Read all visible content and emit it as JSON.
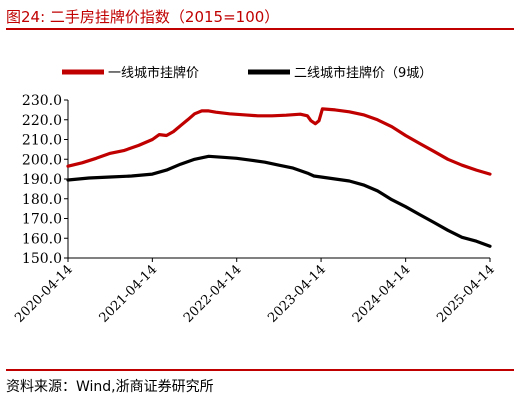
{
  "figure": {
    "title": "图24:  二手房挂牌价指数（2015=100）",
    "source": "资料来源：Wind,浙商证券研究所"
  },
  "colors": {
    "accent": "#c00000",
    "series1": "#c00000",
    "series2": "#000000"
  },
  "chart_data": {
    "type": "line",
    "x_ticks": [
      "2020-04-14",
      "2021-04-14",
      "2022-04-14",
      "2023-04-14",
      "2024-04-14",
      "2025-04-14"
    ],
    "y_ticks": [
      "150.0",
      "160.0",
      "170.0",
      "180.0",
      "190.0",
      "200.0",
      "210.0",
      "220.0",
      "230.0"
    ],
    "ylim": [
      150,
      230
    ],
    "xlim": [
      "2020-04-14",
      "2025-04-14"
    ],
    "legend_position": "top",
    "grid": false,
    "series": [
      {
        "name": "一线城市挂牌价",
        "color": "#c00000",
        "points": [
          [
            "2020-04-14",
            196.5
          ],
          [
            "2020-06-14",
            198.2
          ],
          [
            "2020-08-14",
            200.5
          ],
          [
            "2020-10-14",
            203.0
          ],
          [
            "2020-12-14",
            204.5
          ],
          [
            "2021-02-14",
            207.0
          ],
          [
            "2021-04-14",
            210.0
          ],
          [
            "2021-05-14",
            212.5
          ],
          [
            "2021-06-14",
            212.0
          ],
          [
            "2021-07-14",
            214.0
          ],
          [
            "2021-08-14",
            217.0
          ],
          [
            "2021-09-14",
            220.0
          ],
          [
            "2021-10-14",
            223.0
          ],
          [
            "2021-11-14",
            224.5
          ],
          [
            "2021-12-14",
            224.5
          ],
          [
            "2022-01-14",
            223.8
          ],
          [
            "2022-03-14",
            223.0
          ],
          [
            "2022-05-14",
            222.5
          ],
          [
            "2022-07-14",
            222.0
          ],
          [
            "2022-09-14",
            222.0
          ],
          [
            "2022-11-14",
            222.3
          ],
          [
            "2023-01-14",
            222.8
          ],
          [
            "2023-02-14",
            222.0
          ],
          [
            "2023-03-01",
            219.5
          ],
          [
            "2023-03-20",
            218.0
          ],
          [
            "2023-04-05",
            219.5
          ],
          [
            "2023-04-20",
            225.5
          ],
          [
            "2023-06-14",
            225.0
          ],
          [
            "2023-08-14",
            224.0
          ],
          [
            "2023-10-14",
            222.5
          ],
          [
            "2023-12-14",
            220.0
          ],
          [
            "2024-02-14",
            216.5
          ],
          [
            "2024-04-14",
            212.0
          ],
          [
            "2024-06-14",
            208.0
          ],
          [
            "2024-08-14",
            204.0
          ],
          [
            "2024-10-14",
            200.0
          ],
          [
            "2024-12-14",
            197.0
          ],
          [
            "2025-02-14",
            194.5
          ],
          [
            "2025-04-14",
            192.5
          ]
        ]
      },
      {
        "name": "二线城市挂牌价（9城）",
        "color": "#000000",
        "points": [
          [
            "2020-04-14",
            189.5
          ],
          [
            "2020-07-14",
            190.5
          ],
          [
            "2020-10-14",
            191.0
          ],
          [
            "2021-01-14",
            191.5
          ],
          [
            "2021-04-14",
            192.5
          ],
          [
            "2021-06-14",
            194.5
          ],
          [
            "2021-08-14",
            197.5
          ],
          [
            "2021-10-14",
            200.0
          ],
          [
            "2021-12-14",
            201.5
          ],
          [
            "2022-02-14",
            201.0
          ],
          [
            "2022-04-14",
            200.5
          ],
          [
            "2022-06-14",
            199.5
          ],
          [
            "2022-08-14",
            198.5
          ],
          [
            "2022-10-14",
            197.0
          ],
          [
            "2022-12-14",
            195.5
          ],
          [
            "2023-02-14",
            193.0
          ],
          [
            "2023-03-14",
            191.5
          ],
          [
            "2023-04-14",
            191.0
          ],
          [
            "2023-06-14",
            190.0
          ],
          [
            "2023-08-14",
            189.0
          ],
          [
            "2023-10-14",
            187.0
          ],
          [
            "2023-12-14",
            184.0
          ],
          [
            "2024-02-14",
            179.5
          ],
          [
            "2024-04-14",
            176.0
          ],
          [
            "2024-06-14",
            172.0
          ],
          [
            "2024-08-14",
            168.0
          ],
          [
            "2024-10-14",
            164.0
          ],
          [
            "2024-12-14",
            160.5
          ],
          [
            "2025-02-14",
            158.5
          ],
          [
            "2025-04-14",
            156.0
          ]
        ]
      }
    ]
  }
}
